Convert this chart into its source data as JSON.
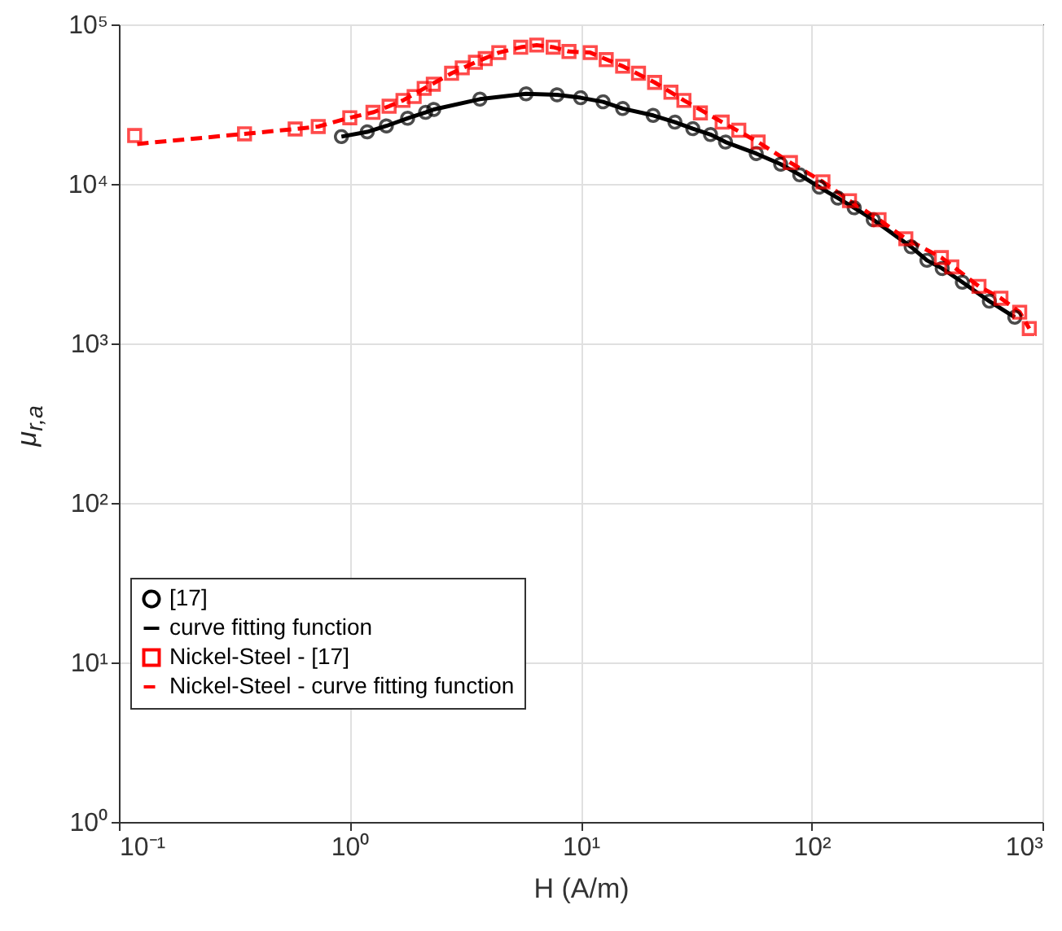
{
  "chart_data": {
    "type": "scatter",
    "xlabel": "H (A/m)",
    "ylabel": "μ$_{r,a}$",
    "log": "xy",
    "grid": true,
    "legend": "bottom left",
    "xlim": [
      0.1,
      1000
    ],
    "ylim": [
      1,
      100000
    ],
    "xticks": [
      {
        "value": 0.1,
        "label": "10⁻¹"
      },
      {
        "value": 1,
        "label": "10⁰"
      },
      {
        "value": 10,
        "label": "10¹"
      },
      {
        "value": 100,
        "label": "10²"
      },
      {
        "value": 1000,
        "label": "10³"
      }
    ],
    "yticks": [
      {
        "value": 1,
        "label": "10⁰"
      },
      {
        "value": 10,
        "label": "10¹"
      },
      {
        "value": 100,
        "label": "10²"
      },
      {
        "value": 1000,
        "label": "10³"
      },
      {
        "value": 10000,
        "label": "10⁴"
      },
      {
        "value": 100000,
        "label": "10⁵"
      }
    ],
    "series": [
      {
        "name": "[17]",
        "marker": "circle",
        "color": "#000000",
        "x": [
          0.92,
          1.19,
          1.44,
          1.78,
          2.13,
          2.31,
          3.66,
          5.8,
          7.9,
          10,
          12.5,
          15.2,
          20.6,
          25.6,
          30.6,
          36.5,
          42.4,
          57.6,
          73.5,
          88.9,
          108,
          130,
          153,
          185,
          270,
          316,
          368,
          450,
          589,
          759
        ],
        "values": [
          19800,
          21200,
          23100,
          25800,
          28100,
          29300,
          34000,
          36700,
          36200,
          34700,
          32700,
          29700,
          26900,
          24400,
          22200,
          20400,
          18300,
          15500,
          13300,
          11400,
          9550,
          8150,
          7080,
          5970,
          4030,
          3320,
          2950,
          2420,
          1840,
          1460
        ]
      },
      {
        "name": "curve fitting function",
        "type": "line",
        "line_style": "solid",
        "color": "#000000",
        "x": [
          0.92,
          1.19,
          1.44,
          1.78,
          2.13,
          2.31,
          3.66,
          5.8,
          7.9,
          10,
          12.5,
          15.2,
          20.6,
          25.6,
          30.6,
          36.5,
          42.4,
          57.6,
          73.5,
          88.9,
          108,
          130,
          153,
          185,
          270,
          316,
          368,
          450,
          589,
          759
        ],
        "values": [
          19800,
          21200,
          23100,
          25800,
          28100,
          29300,
          34000,
          36700,
          36200,
          34700,
          32700,
          29700,
          26900,
          24400,
          22200,
          20400,
          18300,
          15500,
          13300,
          11400,
          9550,
          8150,
          7080,
          5970,
          4030,
          3320,
          2950,
          2420,
          1840,
          1460
        ]
      },
      {
        "name": "Nickel-Steel - [17]",
        "marker": "square",
        "color": "#ff0000",
        "x": [
          0.117,
          0.35,
          0.58,
          0.73,
          1.0,
          1.26,
          1.48,
          1.7,
          1.9,
          2.1,
          2.3,
          2.76,
          3.07,
          3.5,
          3.86,
          4.42,
          5.5,
          6.45,
          7.6,
          8.9,
          11,
          12.9,
          15.2,
          17.8,
          20.9,
          24.6,
          28,
          33,
          41,
          48.4,
          58.7,
          81,
          112,
          146,
          196,
          256,
          365,
          405,
          531,
          661,
          797,
          877
        ],
        "values": [
          20100,
          20600,
          22100,
          22900,
          26000,
          28100,
          30700,
          33400,
          35300,
          39700,
          42200,
          49400,
          53400,
          57900,
          61000,
          66600,
          71900,
          74200,
          72000,
          67600,
          66600,
          60100,
          54700,
          49400,
          43300,
          37600,
          33400,
          27900,
          24400,
          21700,
          18300,
          13600,
          10300,
          7850,
          5970,
          4530,
          3450,
          3020,
          2280,
          1920,
          1570,
          1240
        ]
      },
      {
        "name": "Nickel-Steel - curve fitting function",
        "type": "line",
        "line_style": "dashed",
        "color": "#ff0000",
        "x": [
          0.12,
          0.35,
          0.58,
          0.73,
          1.0,
          1.26,
          1.48,
          1.7,
          2.1,
          2.76,
          3.5,
          4.42,
          5.5,
          6.45,
          7.6,
          8.9,
          11,
          15.2,
          20.9,
          28,
          41,
          58.7,
          81,
          112,
          146,
          196,
          256,
          365,
          531,
          661,
          797,
          877
        ],
        "values": [
          17800,
          20600,
          22100,
          22900,
          26000,
          28100,
          30700,
          33400,
          39700,
          49400,
          57900,
          66600,
          71900,
          74200,
          72000,
          67600,
          66600,
          54700,
          43300,
          33400,
          24400,
          18300,
          13600,
          10300,
          7850,
          5970,
          4530,
          3450,
          2280,
          1920,
          1570,
          1240
        ]
      }
    ]
  }
}
